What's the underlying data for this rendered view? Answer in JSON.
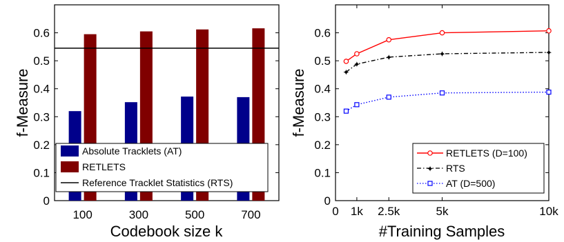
{
  "chart_data": [
    {
      "type": "bar",
      "xlabel": "Codebook size k",
      "ylabel": "f-Measure",
      "categories": [
        "100",
        "300",
        "500",
        "700"
      ],
      "ylim": [
        0,
        0.7
      ],
      "yticks": [
        "0",
        "0.1",
        "0.2",
        "0.3",
        "0.4",
        "0.5",
        "0.6"
      ],
      "series": [
        {
          "name": "Absolute Tracklets (AT)",
          "color": "#00008b",
          "values": [
            0.32,
            0.352,
            0.372,
            0.37
          ]
        },
        {
          "name": "RETLETS",
          "color": "#800000",
          "values": [
            0.595,
            0.605,
            0.612,
            0.616
          ]
        }
      ],
      "reference_line": {
        "name": "Reference Tracklet Statistics (RTS)",
        "value": 0.545,
        "color": "#000000"
      },
      "legend": "bottom"
    },
    {
      "type": "line",
      "xlabel": "#Training Samples",
      "ylabel": "f-Measure",
      "x": [
        500,
        1000,
        2500,
        5000,
        10000
      ],
      "xlim": [
        0,
        10000
      ],
      "ylim": [
        0,
        0.7
      ],
      "xticks": [
        {
          "v": 0,
          "label": "0"
        },
        {
          "v": 1000,
          "label": "1k"
        },
        {
          "v": 2500,
          "label": "2.5k"
        },
        {
          "v": 5000,
          "label": "5k"
        },
        {
          "v": 10000,
          "label": "10k"
        }
      ],
      "yticks": [
        "0",
        "0.1",
        "0.2",
        "0.3",
        "0.4",
        "0.5",
        "0.6"
      ],
      "series": [
        {
          "name": "RETLETS (D=100)",
          "color": "#ff0000",
          "style": "solid",
          "marker": "circle",
          "values": [
            0.498,
            0.525,
            0.575,
            0.6,
            0.607
          ]
        },
        {
          "name": "RTS",
          "color": "#000000",
          "style": "dashdot",
          "marker": "star",
          "values": [
            0.46,
            0.488,
            0.513,
            0.525,
            0.53
          ]
        },
        {
          "name": "AT (D=500)",
          "color": "#0000ff",
          "style": "dotted",
          "marker": "square",
          "values": [
            0.32,
            0.343,
            0.37,
            0.385,
            0.388
          ]
        }
      ],
      "legend": "bottom-right",
      "grid": false
    }
  ]
}
